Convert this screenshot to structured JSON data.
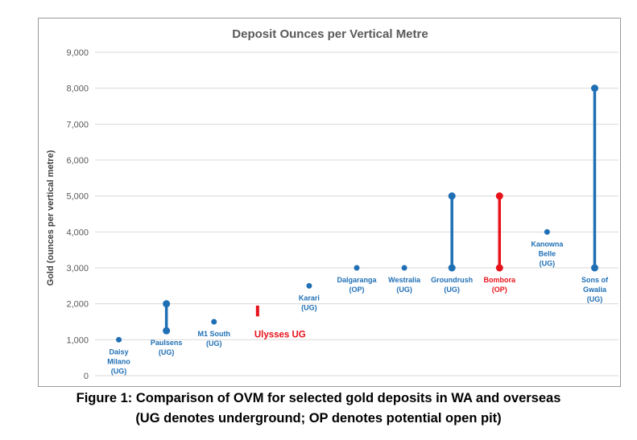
{
  "caption": {
    "line1": "Figure 1: Comparison of OVM for selected gold deposits in WA and overseas",
    "line2": "(UG denotes underground; OP denotes potential open pit)"
  },
  "colors": {
    "series": "#1f6fb5",
    "highlight": "#e8121a",
    "grid": "#d9d9d9",
    "axis_text": "#595959",
    "title": "#595959"
  },
  "chart_data": {
    "type": "scatter",
    "title": "Deposit Ounces per Vertical Metre",
    "xlabel": "",
    "ylabel": "Gold (ounces per vertical metre)",
    "ylim": [
      0,
      9000
    ],
    "yticks": [
      0,
      1000,
      2000,
      3000,
      4000,
      5000,
      6000,
      7000,
      8000,
      9000
    ],
    "ytick_labels": [
      "0",
      "1,000",
      "2,000",
      "3,000",
      "4,000",
      "5,000",
      "6,000",
      "7,000",
      "8,000",
      "9,000"
    ],
    "grid": true,
    "deposits": [
      {
        "label": [
          "Daisy",
          "Milano",
          "(UG)"
        ],
        "low": 1000,
        "high": 1000,
        "highlight": false,
        "label_pos": "below"
      },
      {
        "label": [
          "Paulsens",
          "(UG)"
        ],
        "low": 1250,
        "high": 2000,
        "highlight": false,
        "label_pos": "below"
      },
      {
        "label": [
          "M1 South",
          "(UG)"
        ],
        "low": 1500,
        "high": 1500,
        "highlight": false,
        "label_pos": "below"
      },
      {
        "label": [
          "Ulysses UG"
        ],
        "low": 1650,
        "high": 1950,
        "highlight": true,
        "label_pos": "below-right",
        "style": "bar"
      },
      {
        "label": [
          "Karari",
          "(UG)"
        ],
        "low": 2500,
        "high": 2500,
        "highlight": false,
        "label_pos": "below"
      },
      {
        "label": [
          "Dalgaranga",
          "(OP)"
        ],
        "low": 3000,
        "high": 3000,
        "highlight": false,
        "label_pos": "below"
      },
      {
        "label": [
          "Westralia",
          "(UG)"
        ],
        "low": 3000,
        "high": 3000,
        "highlight": false,
        "label_pos": "below"
      },
      {
        "label": [
          "Groundrush",
          "(UG)"
        ],
        "low": 3000,
        "high": 5000,
        "highlight": false,
        "label_pos": "below"
      },
      {
        "label": [
          "Bombora",
          "(OP)"
        ],
        "low": 3000,
        "high": 5000,
        "highlight": true,
        "label_pos": "below"
      },
      {
        "label": [
          "Kanowna",
          "Belle",
          "(UG)"
        ],
        "low": 4000,
        "high": 4000,
        "highlight": false,
        "label_pos": "below"
      },
      {
        "label": [
          "Sons of",
          "Gwalia",
          "(UG)"
        ],
        "low": 3000,
        "high": 8000,
        "highlight": false,
        "label_pos": "below"
      }
    ]
  }
}
